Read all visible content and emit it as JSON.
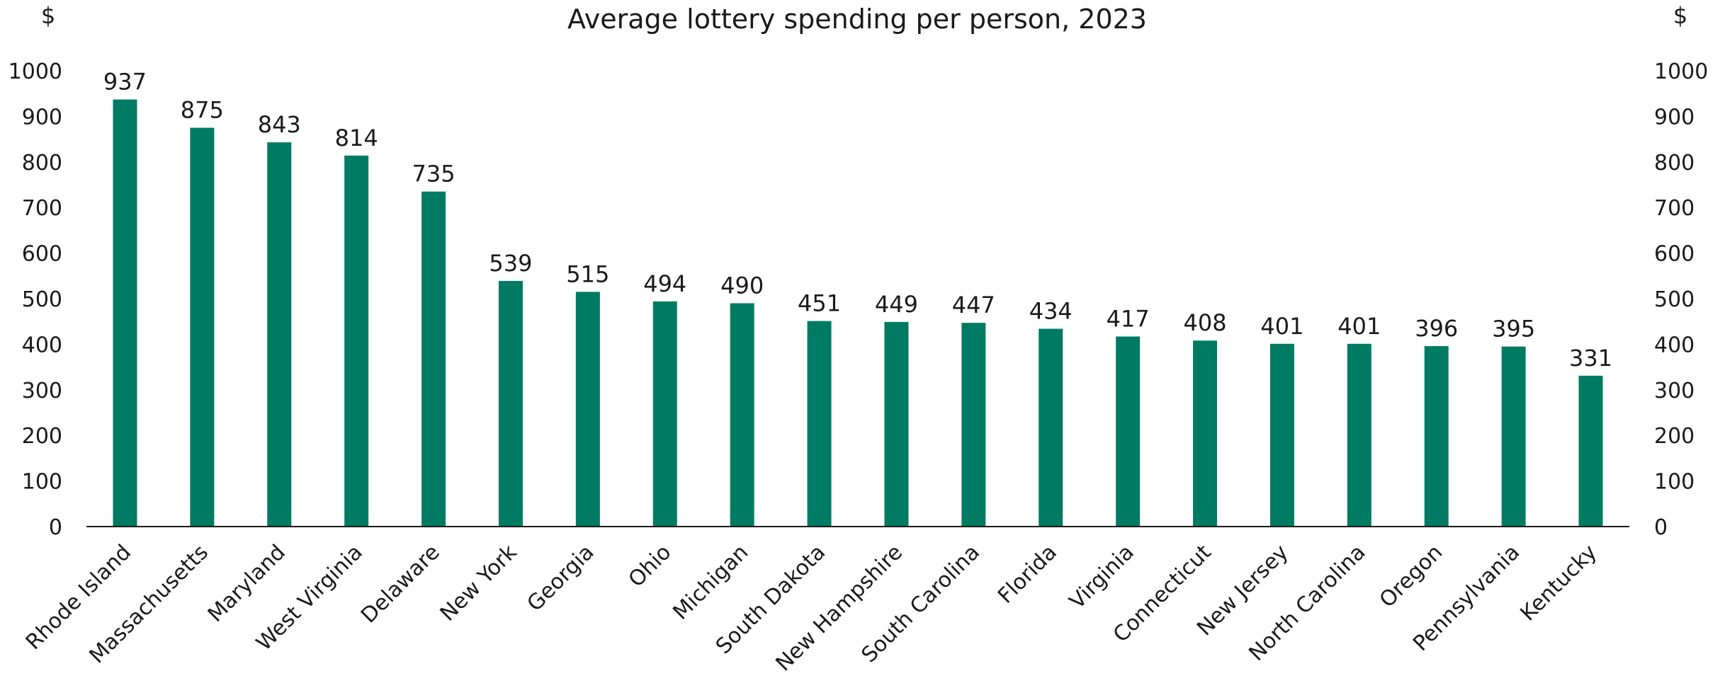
{
  "chart_data": {
    "type": "bar",
    "title": "Average lottery spending per person, 2023",
    "y_unit_left": "$",
    "y_unit_right": "$",
    "ylim": [
      0,
      1000
    ],
    "yticks": [
      "0",
      "100",
      "200",
      "300",
      "400",
      "500",
      "600",
      "700",
      "800",
      "900",
      "1000"
    ],
    "grid": false,
    "bar_color": "#007B63",
    "categories": [
      "Rhode Island",
      "Massachusetts",
      "Maryland",
      "West Virginia",
      "Delaware",
      "New York",
      "Georgia",
      "Ohio",
      "Michigan",
      "South Dakota",
      "New Hampshire",
      "South Carolina",
      "Florida",
      "Virginia",
      "Connecticut",
      "New Jersey",
      "North Carolina",
      "Oregon",
      "Pennsylvania",
      "Kentucky"
    ],
    "values": [
      937,
      875,
      843,
      814,
      735,
      539,
      515,
      494,
      490,
      451,
      449,
      447,
      434,
      417,
      408,
      401,
      401,
      396,
      395,
      331
    ],
    "data_labels": [
      "937",
      "875",
      "843",
      "814",
      "735",
      "539",
      "515",
      "494",
      "490",
      "451",
      "449",
      "447",
      "434",
      "417",
      "408",
      "401",
      "401",
      "396",
      "395",
      "331"
    ]
  }
}
